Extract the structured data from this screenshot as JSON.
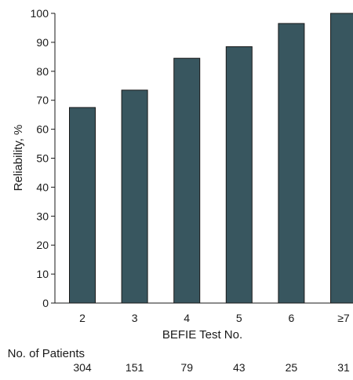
{
  "chart_data": {
    "type": "bar",
    "title": "",
    "xlabel": "BEFIE Test No.",
    "ylabel": "Reliability, %",
    "ylim": [
      0,
      100
    ],
    "yticks": [
      0,
      10,
      20,
      30,
      40,
      50,
      60,
      70,
      80,
      90,
      100
    ],
    "categories": [
      "2",
      "3",
      "4",
      "5",
      "6",
      "≥7"
    ],
    "values": [
      67.5,
      73.5,
      84.5,
      88.5,
      96.5,
      100
    ],
    "grid": false,
    "bar_color": "#38565f",
    "patients": {
      "label": "No. of Patients",
      "values": [
        "304",
        "151",
        "79",
        "43",
        "25",
        "31"
      ]
    }
  }
}
